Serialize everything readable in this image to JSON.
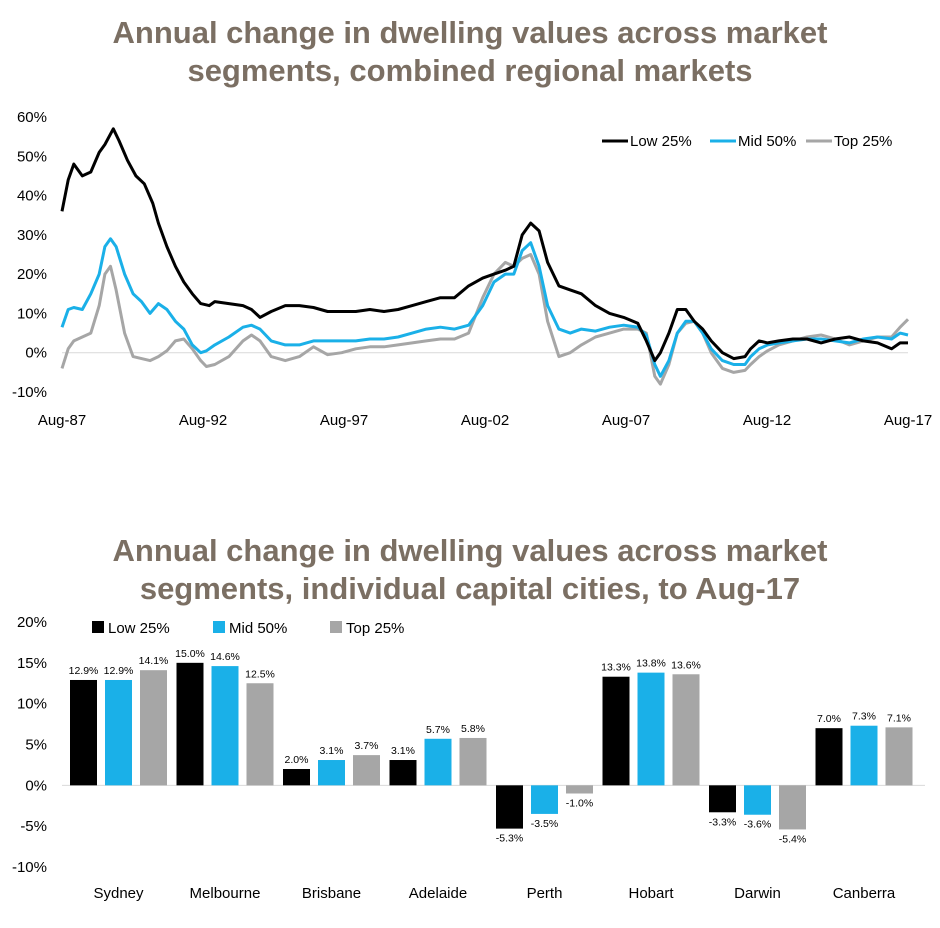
{
  "chart_data": [
    {
      "type": "line",
      "title_lines": [
        "Annual change in dwelling values across market",
        "segments, combined regional markets"
      ],
      "x_ticks": [
        "Aug-87",
        "Aug-92",
        "Aug-97",
        "Aug-02",
        "Aug-07",
        "Aug-12",
        "Aug-17"
      ],
      "y_ticks": [
        "60%",
        "50%",
        "40%",
        "30%",
        "20%",
        "10%",
        "0%",
        "-10%"
      ],
      "ylim": [
        -10,
        60
      ],
      "xlim": [
        1987.58,
        2017.58
      ],
      "legend_position": "top-right",
      "series": [
        {
          "name": "Low 25%",
          "color": "#000000",
          "x": [
            1987.58,
            1987.8,
            1988.0,
            1988.3,
            1988.6,
            1988.9,
            1989.1,
            1989.4,
            1989.6,
            1989.9,
            1990.2,
            1990.5,
            1990.8,
            1991.0,
            1991.3,
            1991.6,
            1991.9,
            1992.2,
            1992.5,
            1992.8,
            1993.0,
            1993.5,
            1994.0,
            1994.3,
            1994.6,
            1995.0,
            1995.5,
            1996.0,
            1996.5,
            1997.0,
            1997.5,
            1998.0,
            1998.5,
            1999.0,
            1999.5,
            2000.0,
            2000.5,
            2001.0,
            2001.5,
            2002.0,
            2002.5,
            2002.9,
            2003.3,
            2003.6,
            2003.9,
            2004.2,
            2004.5,
            2004.8,
            2005.2,
            2005.6,
            2006.0,
            2006.5,
            2007.0,
            2007.5,
            2008.0,
            2008.3,
            2008.6,
            2008.8,
            2009.1,
            2009.4,
            2009.7,
            2010.0,
            2010.3,
            2010.6,
            2011.0,
            2011.4,
            2011.8,
            2012.0,
            2012.3,
            2012.6,
            2013.0,
            2013.5,
            2014.0,
            2014.5,
            2015.0,
            2015.5,
            2016.0,
            2016.5,
            2017.0,
            2017.3,
            2017.58
          ],
          "values": [
            36,
            44,
            48,
            45,
            46,
            51,
            53,
            57,
            54,
            49,
            45,
            43,
            38,
            33,
            27,
            22,
            18,
            15,
            12.5,
            12,
            13,
            12.5,
            12,
            11,
            9,
            10.5,
            12,
            12,
            11.5,
            10.5,
            10.5,
            10.5,
            11,
            10.5,
            11,
            12,
            13,
            14,
            14,
            17,
            19,
            20,
            21,
            22,
            30,
            33,
            31,
            23,
            17,
            16,
            15,
            12,
            10,
            9,
            7.5,
            3,
            -2,
            0,
            5,
            11,
            11,
            8,
            6,
            3,
            0,
            -1.5,
            -1,
            1,
            3,
            2.5,
            3,
            3.5,
            3.5,
            2.5,
            3.5,
            4,
            3,
            2.5,
            1,
            2.5,
            2.5
          ]
        },
        {
          "name": "Mid 50%",
          "color": "#1ab0e8",
          "x": [
            1987.58,
            1987.8,
            1988.0,
            1988.3,
            1988.6,
            1988.9,
            1989.1,
            1989.3,
            1989.5,
            1989.8,
            1990.1,
            1990.4,
            1990.7,
            1991.0,
            1991.3,
            1991.6,
            1991.9,
            1992.2,
            1992.5,
            1992.7,
            1993.0,
            1993.5,
            1994.0,
            1994.3,
            1994.6,
            1995.0,
            1995.5,
            1996.0,
            1996.5,
            1997.0,
            1997.5,
            1998.0,
            1998.5,
            1999.0,
            1999.5,
            2000.0,
            2000.5,
            2001.0,
            2001.5,
            2002.0,
            2002.5,
            2002.9,
            2003.3,
            2003.6,
            2003.9,
            2004.2,
            2004.5,
            2004.8,
            2005.2,
            2005.6,
            2006.0,
            2006.5,
            2007.0,
            2007.5,
            2008.0,
            2008.3,
            2008.6,
            2008.8,
            2009.1,
            2009.4,
            2009.7,
            2010.0,
            2010.3,
            2010.6,
            2011.0,
            2011.4,
            2011.8,
            2012.0,
            2012.3,
            2012.6,
            2013.0,
            2013.5,
            2014.0,
            2014.5,
            2015.0,
            2015.5,
            2016.0,
            2016.5,
            2017.0,
            2017.3,
            2017.58
          ],
          "values": [
            6.5,
            11,
            11.5,
            11,
            15,
            20,
            27,
            29,
            27,
            20,
            15,
            13,
            10,
            12.5,
            11,
            8,
            6,
            2,
            0,
            0.5,
            2,
            4,
            6.5,
            7,
            6,
            3,
            2,
            2,
            3,
            3,
            3,
            3,
            3.5,
            3.5,
            4,
            5,
            6,
            6.5,
            6,
            7,
            12,
            18,
            20,
            20,
            26,
            28,
            22,
            12,
            6,
            5,
            6,
            5.5,
            6.5,
            7,
            6.5,
            4.5,
            -3,
            -6,
            -2,
            5,
            8,
            8,
            5,
            1,
            -2,
            -3,
            -3,
            -1,
            1,
            2,
            2.5,
            3,
            3.5,
            3.5,
            3,
            2.5,
            3.5,
            4,
            3.5,
            5,
            4.5
          ]
        },
        {
          "name": "Top 25%",
          "color": "#a6a6a6",
          "x": [
            1987.58,
            1987.8,
            1988.0,
            1988.3,
            1988.6,
            1988.9,
            1989.1,
            1989.3,
            1989.5,
            1989.8,
            1990.1,
            1990.4,
            1990.7,
            1991.0,
            1991.3,
            1991.6,
            1991.9,
            1992.2,
            1992.5,
            1992.7,
            1993.0,
            1993.5,
            1994.0,
            1994.3,
            1994.6,
            1995.0,
            1995.5,
            1996.0,
            1996.5,
            1997.0,
            1997.5,
            1998.0,
            1998.5,
            1999.0,
            1999.5,
            2000.0,
            2000.5,
            2001.0,
            2001.5,
            2002.0,
            2002.5,
            2002.9,
            2003.3,
            2003.6,
            2003.9,
            2004.2,
            2004.5,
            2004.8,
            2005.2,
            2005.6,
            2006.0,
            2006.5,
            2007.0,
            2007.5,
            2008.0,
            2008.3,
            2008.6,
            2008.8,
            2009.1,
            2009.4,
            2009.7,
            2010.0,
            2010.3,
            2010.6,
            2011.0,
            2011.4,
            2011.8,
            2012.0,
            2012.3,
            2012.6,
            2013.0,
            2013.5,
            2014.0,
            2014.5,
            2015.0,
            2015.5,
            2016.0,
            2016.5,
            2017.0,
            2017.3,
            2017.58
          ],
          "values": [
            -4,
            1,
            3,
            4,
            5,
            12,
            20,
            22,
            16,
            5,
            -1,
            -1.5,
            -2,
            -1,
            0.5,
            3,
            3.5,
            1,
            -2,
            -3.5,
            -3,
            -1,
            3,
            4.5,
            3,
            -1,
            -2,
            -1,
            1.5,
            -0.5,
            0,
            1,
            1.5,
            1.5,
            2,
            2.5,
            3,
            3.5,
            3.5,
            5,
            14,
            20,
            23,
            22,
            24,
            25,
            20,
            8,
            -1,
            0,
            2,
            4,
            5,
            6,
            6,
            5,
            -6,
            -8,
            -3,
            5,
            7.5,
            8,
            5,
            0,
            -4,
            -5,
            -4.5,
            -3,
            -1,
            0.5,
            2,
            3,
            4,
            4.5,
            3.5,
            2,
            3,
            4,
            4,
            6.5,
            8.5
          ]
        }
      ]
    },
    {
      "type": "bar",
      "title_lines": [
        "Annual change in dwelling values across market",
        "segments, individual capital cities, to Aug-17"
      ],
      "categories": [
        "Sydney",
        "Melbourne",
        "Brisbane",
        "Adelaide",
        "Perth",
        "Hobart",
        "Darwin",
        "Canberra"
      ],
      "y_ticks": [
        "20%",
        "15%",
        "10%",
        "5%",
        "0%",
        "-5%",
        "-10%"
      ],
      "ylim": [
        -10,
        20
      ],
      "legend_position": "top-left",
      "series": [
        {
          "name": "Low 25%",
          "color": "#000000",
          "values": [
            12.9,
            15.0,
            2.0,
            3.1,
            -5.3,
            13.3,
            -3.3,
            7.0
          ],
          "labels": [
            "12.9%",
            "15.0%",
            "2.0%",
            "3.1%",
            "-5.3%",
            "13.3%",
            "-3.3%",
            "7.0%"
          ]
        },
        {
          "name": "Mid 50%",
          "color": "#1ab0e8",
          "values": [
            12.9,
            14.6,
            3.1,
            5.7,
            -3.5,
            13.8,
            -3.6,
            7.3
          ],
          "labels": [
            "12.9%",
            "14.6%",
            "3.1%",
            "5.7%",
            "-3.5%",
            "13.8%",
            "-3.6%",
            "7.3%"
          ]
        },
        {
          "name": "Top 25%",
          "color": "#a6a6a6",
          "values": [
            14.1,
            12.5,
            3.7,
            5.8,
            -1.0,
            13.6,
            -5.4,
            7.1
          ],
          "labels": [
            "14.1%",
            "12.5%",
            "3.7%",
            "5.8%",
            "-1.0%",
            "13.6%",
            "-5.4%",
            "7.1%"
          ]
        }
      ]
    }
  ]
}
